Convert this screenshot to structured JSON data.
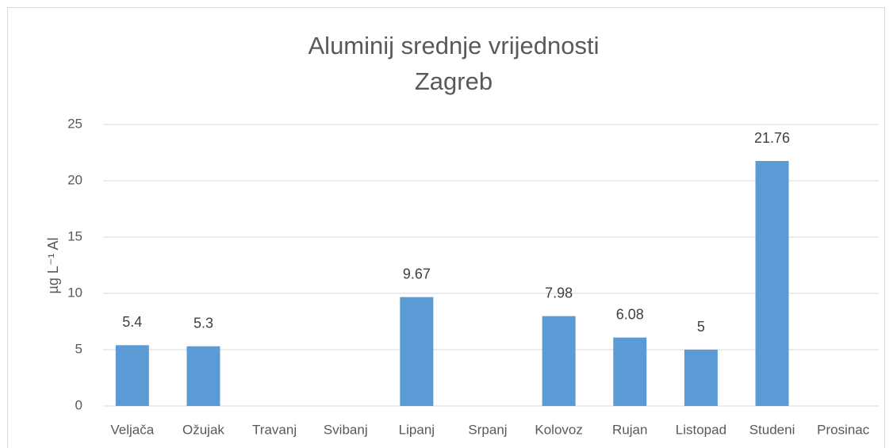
{
  "chart_data": {
    "type": "bar",
    "title": "Aluminij srednje vrijednosti",
    "subtitle": "Zagreb",
    "y_label": "µg L⁻¹ Al",
    "categories": [
      "Veljača",
      "Ožujak",
      "Travanj",
      "Svibanj",
      "Lipanj",
      "Srpanj",
      "Kolovoz",
      "Rujan",
      "Listopad",
      "Studeni",
      "Prosinac"
    ],
    "values": [
      5.4,
      5.3,
      null,
      null,
      9.67,
      null,
      7.98,
      6.08,
      5,
      21.76,
      null
    ],
    "color": "#5b9bd5",
    "ylim": [
      0,
      25
    ],
    "yticks": [
      0,
      5,
      10,
      15,
      20,
      25
    ],
    "grid": true
  }
}
